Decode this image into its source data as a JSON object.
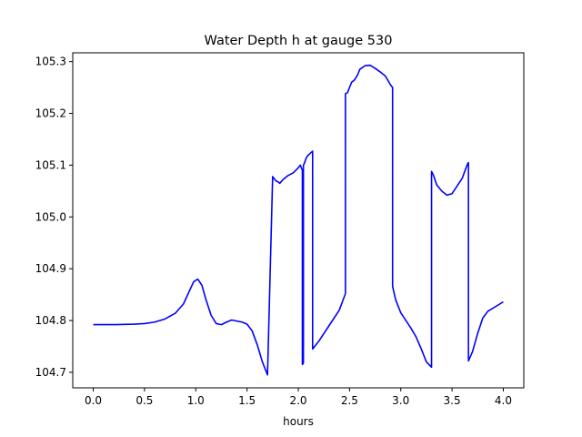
{
  "chart_data": {
    "type": "line",
    "title": "Water Depth h at gauge 530",
    "xlabel": "hours",
    "ylabel": "",
    "xlim": [
      -0.2,
      4.2
    ],
    "ylim": [
      104.67,
      105.317
    ],
    "xticks": [
      0.0,
      0.5,
      1.0,
      1.5,
      2.0,
      2.5,
      3.0,
      3.5,
      4.0
    ],
    "xtick_labels": [
      "0.0",
      "0.5",
      "1.0",
      "1.5",
      "2.0",
      "2.5",
      "3.0",
      "3.5",
      "4.0"
    ],
    "yticks": [
      104.7,
      104.8,
      104.9,
      105.0,
      105.1,
      105.2,
      105.3
    ],
    "ytick_labels": [
      "104.7",
      "104.8",
      "104.9",
      "105.0",
      "105.1",
      "105.2",
      "105.3"
    ],
    "grid": false,
    "series": [
      {
        "color": "#0000ff",
        "x": [
          0.0,
          0.2,
          0.4,
          0.5,
          0.6,
          0.7,
          0.8,
          0.88,
          0.94,
          0.98,
          1.02,
          1.06,
          1.1,
          1.15,
          1.2,
          1.25,
          1.3,
          1.35,
          1.4,
          1.45,
          1.5,
          1.55,
          1.6,
          1.65,
          1.7,
          1.75,
          1.75,
          1.78,
          1.8,
          1.82,
          1.85,
          1.9,
          1.95,
          2.0,
          2.02,
          2.04,
          2.04,
          2.05,
          2.05,
          2.06,
          2.08,
          2.1,
          2.14,
          2.14,
          2.2,
          2.3,
          2.4,
          2.46,
          2.46,
          2.48,
          2.5,
          2.52,
          2.55,
          2.58,
          2.6,
          2.65,
          2.7,
          2.75,
          2.8,
          2.85,
          2.9,
          2.92,
          2.92,
          2.95,
          3.0,
          3.05,
          3.1,
          3.15,
          3.2,
          3.25,
          3.3,
          3.3,
          3.32,
          3.35,
          3.4,
          3.45,
          3.5,
          3.55,
          3.6,
          3.65,
          3.66,
          3.66,
          3.7,
          3.75,
          3.8,
          3.85,
          3.9,
          3.95,
          4.0
        ],
        "y": [
          104.792,
          104.792,
          104.793,
          104.794,
          104.797,
          104.803,
          104.814,
          104.832,
          104.858,
          104.875,
          104.88,
          104.868,
          104.84,
          104.81,
          104.794,
          104.792,
          104.797,
          104.801,
          104.799,
          104.797,
          104.793,
          104.78,
          104.753,
          104.72,
          104.695,
          105.078,
          105.078,
          105.07,
          105.068,
          105.065,
          105.072,
          105.08,
          105.085,
          105.095,
          105.1,
          105.09,
          104.715,
          104.718,
          105.1,
          105.104,
          105.115,
          105.12,
          105.127,
          104.745,
          104.76,
          104.79,
          104.82,
          104.852,
          105.238,
          105.24,
          105.25,
          105.26,
          105.265,
          105.275,
          105.285,
          105.292,
          105.293,
          105.287,
          105.28,
          105.272,
          105.255,
          105.25,
          104.866,
          104.84,
          104.815,
          104.8,
          104.785,
          104.768,
          104.745,
          104.72,
          104.71,
          105.088,
          105.08,
          105.062,
          105.05,
          105.042,
          105.045,
          105.06,
          105.075,
          105.102,
          105.105,
          104.722,
          104.74,
          104.775,
          104.805,
          104.818,
          104.824,
          104.83,
          104.836
        ]
      }
    ]
  }
}
